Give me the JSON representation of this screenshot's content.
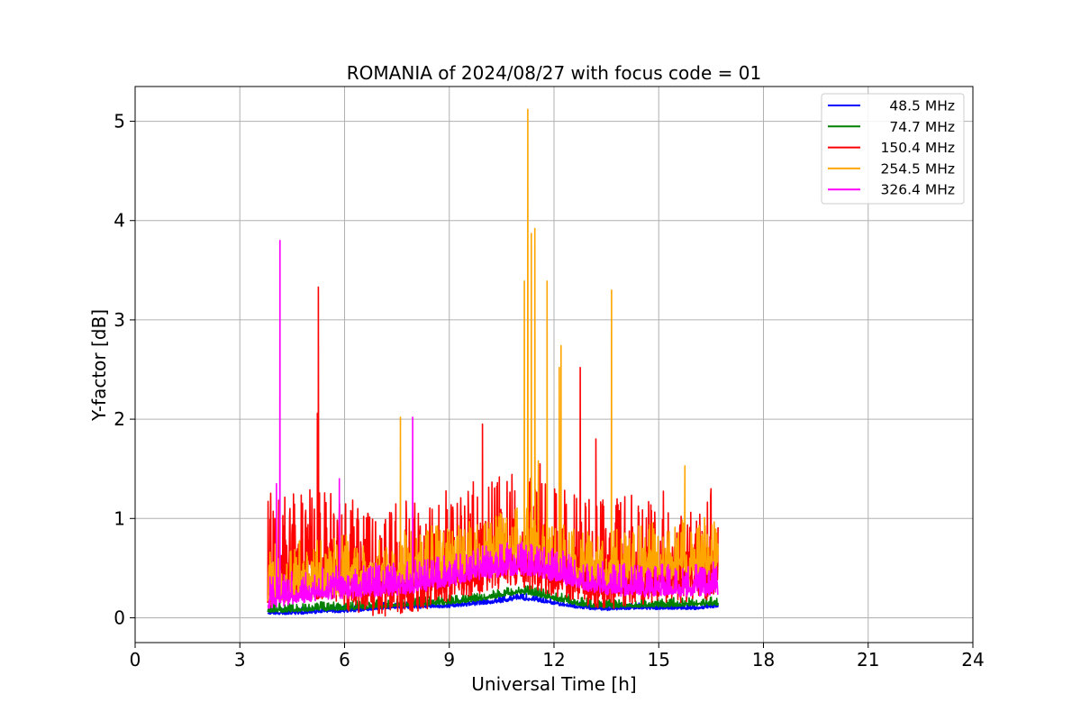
{
  "chart_data": {
    "type": "line",
    "title": "ROMANIA of 2024/08/27 with focus code = 01",
    "xlabel": "Universal Time [h]",
    "ylabel": "Y-factor [dB]",
    "xlim": [
      0,
      24
    ],
    "ylim": [
      -0.25,
      5.35
    ],
    "xticks": [
      0,
      3,
      6,
      9,
      12,
      15,
      18,
      21,
      24
    ],
    "yticks": [
      0,
      1,
      2,
      3,
      4,
      5
    ],
    "grid": true,
    "legend_position": "top-right",
    "series": [
      {
        "name": "48.5 MHz",
        "color": "#0000ff",
        "x": [
          3.8,
          4.5,
          5.0,
          6.0,
          7.0,
          7.5,
          8.0,
          9.0,
          10.0,
          10.5,
          11.0,
          11.5,
          12.0,
          12.5,
          13.0,
          13.5,
          14.0,
          15.0,
          16.0,
          16.7
        ],
        "base": [
          0.05,
          0.05,
          0.06,
          0.07,
          0.1,
          0.11,
          0.11,
          0.12,
          0.15,
          0.17,
          0.2,
          0.18,
          0.15,
          0.12,
          0.1,
          0.09,
          0.1,
          0.1,
          0.1,
          0.12
        ],
        "noise": 0.05,
        "spikes": []
      },
      {
        "name": "74.7 MHz",
        "color": "#008000",
        "x": [
          3.8,
          4.5,
          5.0,
          6.0,
          7.0,
          7.5,
          8.0,
          9.0,
          10.0,
          10.5,
          11.0,
          11.5,
          12.0,
          12.5,
          13.0,
          13.5,
          14.0,
          15.0,
          16.0,
          16.7
        ],
        "base": [
          0.08,
          0.08,
          0.09,
          0.1,
          0.12,
          0.13,
          0.14,
          0.16,
          0.2,
          0.23,
          0.27,
          0.24,
          0.2,
          0.16,
          0.13,
          0.12,
          0.13,
          0.13,
          0.14,
          0.15
        ],
        "noise": 0.07,
        "spikes": []
      },
      {
        "name": "150.4 MHz",
        "color": "#ff0000",
        "x": [
          3.8,
          4.5,
          5.0,
          5.5,
          6.0,
          7.0,
          8.0,
          9.0,
          9.5,
          10.0,
          10.5,
          11.0,
          11.5,
          12.0,
          12.5,
          13.0,
          13.5,
          14.0,
          15.0,
          16.0,
          16.7
        ],
        "base": [
          0.4,
          0.45,
          0.5,
          0.45,
          0.35,
          0.3,
          0.35,
          0.45,
          0.5,
          0.55,
          0.6,
          0.6,
          0.55,
          0.5,
          0.45,
          0.4,
          0.38,
          0.4,
          0.45,
          0.45,
          0.5
        ],
        "noise": 0.85,
        "spikes": [
          [
            5.25,
            3.33
          ],
          [
            5.22,
            2.06
          ],
          [
            9.95,
            1.95
          ],
          [
            12.75,
            2.52
          ],
          [
            13.2,
            1.8
          ],
          [
            11.6,
            1.55
          ]
        ]
      },
      {
        "name": "254.5 MHz",
        "color": "#ffa500",
        "x": [
          3.8,
          4.5,
          5.0,
          6.0,
          7.0,
          8.0,
          9.0,
          10.0,
          10.5,
          11.0,
          11.5,
          12.0,
          12.5,
          13.0,
          13.5,
          14.0,
          15.0,
          16.0,
          16.7
        ],
        "base": [
          0.3,
          0.32,
          0.35,
          0.38,
          0.42,
          0.45,
          0.5,
          0.58,
          0.62,
          0.68,
          0.62,
          0.55,
          0.5,
          0.47,
          0.45,
          0.47,
          0.52,
          0.55,
          0.6
        ],
        "noise": 0.45,
        "spikes": [
          [
            11.25,
            5.12
          ],
          [
            11.15,
            3.39
          ],
          [
            11.35,
            3.87
          ],
          [
            11.45,
            3.92
          ],
          [
            11.8,
            3.39
          ],
          [
            12.2,
            2.74
          ],
          [
            12.15,
            2.52
          ],
          [
            13.65,
            3.3
          ],
          [
            7.6,
            2.02
          ],
          [
            11.55,
            1.58
          ],
          [
            15.75,
            1.53
          ]
        ]
      },
      {
        "name": "326.4 MHz",
        "color": "#ff00ff",
        "x": [
          3.8,
          4.5,
          5.0,
          6.0,
          7.0,
          8.0,
          9.0,
          10.0,
          10.5,
          11.0,
          11.5,
          12.0,
          12.5,
          13.0,
          13.5,
          14.0,
          15.0,
          16.0,
          16.7
        ],
        "base": [
          0.18,
          0.22,
          0.25,
          0.28,
          0.3,
          0.33,
          0.4,
          0.48,
          0.5,
          0.52,
          0.5,
          0.45,
          0.4,
          0.35,
          0.32,
          0.3,
          0.3,
          0.3,
          0.32
        ],
        "noise": 0.25,
        "spikes": [
          [
            4.15,
            3.8
          ],
          [
            7.95,
            2.02
          ],
          [
            4.05,
            1.35
          ],
          [
            5.85,
            1.4
          ]
        ]
      }
    ]
  }
}
